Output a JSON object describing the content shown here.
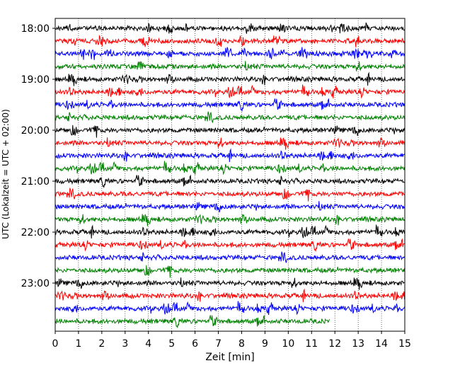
{
  "chart_data": {
    "type": "line",
    "title": "",
    "xlabel": "Zeit  [min]",
    "ylabel": "UTC (Lokalzeit = UTC + 02:00)",
    "xlim": [
      0,
      15
    ],
    "x_ticks": [
      "0",
      "1",
      "2",
      "3",
      "4",
      "5",
      "6",
      "7",
      "8",
      "9",
      "10",
      "11",
      "12",
      "13",
      "14",
      "15"
    ],
    "y_tick_labels": [
      "18:00",
      "19:00",
      "20:00",
      "21:00",
      "22:00",
      "23:00"
    ],
    "y_tick_rows": [
      0,
      4,
      8,
      12,
      16,
      20
    ],
    "grid": "vertical dotted",
    "colors": [
      "#000000",
      "#ff0000",
      "#0000ff",
      "#008000"
    ],
    "row_interval_minutes": 15,
    "rows": [
      {
        "start": "18:00",
        "color": "#000000",
        "end_min": 15
      },
      {
        "start": "18:15",
        "color": "#ff0000",
        "end_min": 15
      },
      {
        "start": "18:30",
        "color": "#0000ff",
        "end_min": 15
      },
      {
        "start": "18:45",
        "color": "#008000",
        "end_min": 15
      },
      {
        "start": "19:00",
        "color": "#000000",
        "end_min": 15
      },
      {
        "start": "19:15",
        "color": "#ff0000",
        "end_min": 15
      },
      {
        "start": "19:30",
        "color": "#0000ff",
        "end_min": 15
      },
      {
        "start": "19:45",
        "color": "#008000",
        "end_min": 15
      },
      {
        "start": "20:00",
        "color": "#000000",
        "end_min": 15
      },
      {
        "start": "20:15",
        "color": "#ff0000",
        "end_min": 15
      },
      {
        "start": "20:30",
        "color": "#0000ff",
        "end_min": 15
      },
      {
        "start": "20:45",
        "color": "#008000",
        "end_min": 15
      },
      {
        "start": "21:00",
        "color": "#000000",
        "end_min": 15
      },
      {
        "start": "21:15",
        "color": "#ff0000",
        "end_min": 15
      },
      {
        "start": "21:30",
        "color": "#0000ff",
        "end_min": 15
      },
      {
        "start": "21:45",
        "color": "#008000",
        "end_min": 15
      },
      {
        "start": "22:00",
        "color": "#000000",
        "end_min": 15
      },
      {
        "start": "22:15",
        "color": "#ff0000",
        "end_min": 15
      },
      {
        "start": "22:30",
        "color": "#0000ff",
        "end_min": 15
      },
      {
        "start": "22:45",
        "color": "#008000",
        "end_min": 15
      },
      {
        "start": "23:00",
        "color": "#000000",
        "end_min": 15
      },
      {
        "start": "23:15",
        "color": "#ff0000",
        "end_min": 15
      },
      {
        "start": "23:30",
        "color": "#0000ff",
        "end_min": 15
      },
      {
        "start": "23:45",
        "color": "#008000",
        "end_min": 11.8
      }
    ]
  }
}
